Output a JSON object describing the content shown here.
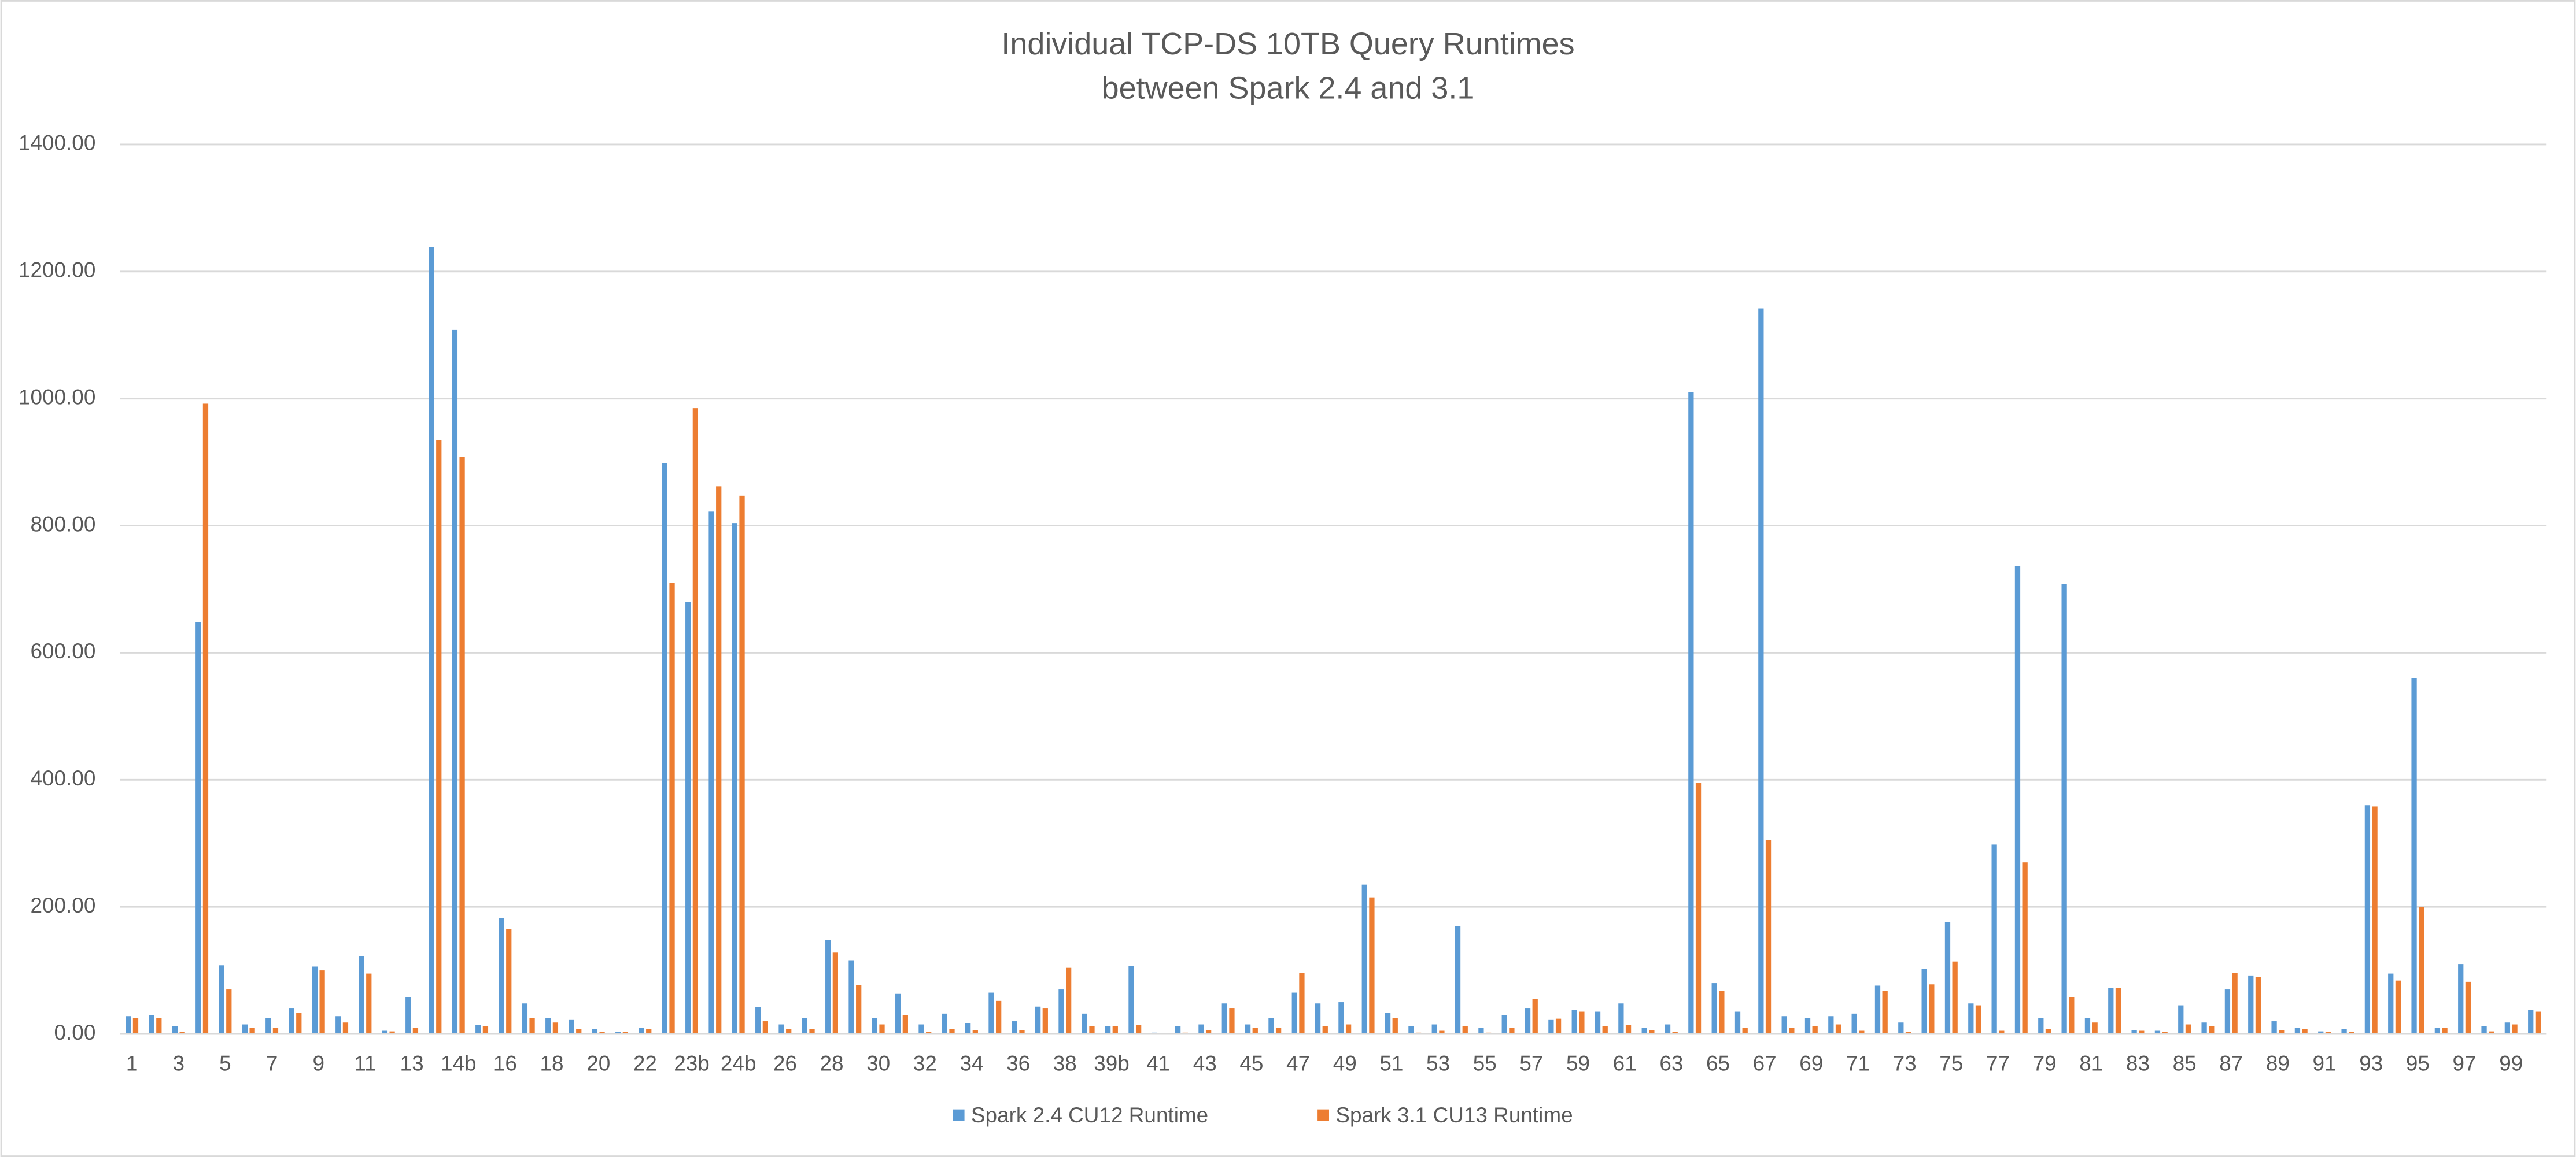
{
  "chart_data": {
    "type": "bar",
    "title": [
      "Individual TCP-DS 10TB Query Runtimes",
      "between Spark 2.4 and 3.1"
    ],
    "categories": [
      "1",
      null,
      "3",
      null,
      "5",
      null,
      "7",
      null,
      "9",
      null,
      "11",
      null,
      "13",
      null,
      "14b",
      null,
      "16",
      null,
      "18",
      null,
      "20",
      null,
      "22",
      null,
      "23b",
      null,
      "24b",
      null,
      "26",
      null,
      "28",
      null,
      "30",
      null,
      "32",
      null,
      "34",
      null,
      "36",
      null,
      "38",
      null,
      "39b",
      null,
      "41",
      null,
      "43",
      null,
      "45",
      null,
      "47",
      null,
      "49",
      null,
      "51",
      null,
      "53",
      null,
      "55",
      null,
      "57",
      null,
      "59",
      null,
      "61",
      null,
      "63",
      null,
      "65",
      null,
      "67",
      null,
      "69",
      null,
      "71",
      null,
      "73",
      null,
      "75",
      null,
      "77",
      null,
      "79",
      null,
      "81",
      null,
      "83",
      null,
      "85",
      null,
      "87",
      null,
      "89",
      null,
      "91",
      null,
      "93",
      null,
      "95",
      null,
      "97",
      null,
      "99",
      null
    ],
    "series": [
      {
        "name": "Spark 2.4 CU12 Runtime",
        "color": "#5b9bd5",
        "values": [
          28,
          30,
          12,
          648,
          108,
          15,
          25,
          40,
          106,
          28,
          122,
          5,
          58,
          1238,
          1108,
          14,
          182,
          48,
          25,
          22,
          8,
          3,
          10,
          898,
          680,
          822,
          804,
          42,
          15,
          25,
          148,
          116,
          25,
          63,
          15,
          32,
          17,
          65,
          20,
          43,
          70,
          32,
          12,
          107,
          2,
          12,
          15,
          48,
          15,
          25,
          65,
          48,
          50,
          235,
          33,
          12,
          15,
          170,
          10,
          30,
          40,
          22,
          38,
          35,
          48,
          10,
          15,
          1010,
          80,
          35,
          1142,
          28,
          25,
          28,
          32,
          76,
          18,
          102,
          176,
          48,
          298,
          736,
          25,
          708,
          25,
          72,
          6,
          5,
          45,
          18,
          70,
          92,
          20,
          10,
          4,
          8,
          360,
          95,
          560,
          10,
          110,
          12,
          18,
          38
        ]
      },
      {
        "name": "Spark 3.1 CU13 Runtime",
        "color": "#ed7d31",
        "values": [
          25,
          25,
          3,
          992,
          70,
          10,
          10,
          33,
          100,
          18,
          95,
          4,
          10,
          935,
          908,
          12,
          165,
          25,
          18,
          8,
          3,
          3,
          8,
          710,
          985,
          862,
          847,
          20,
          8,
          8,
          128,
          77,
          15,
          30,
          3,
          8,
          6,
          52,
          6,
          40,
          104,
          12,
          12,
          14,
          1,
          2,
          6,
          40,
          10,
          10,
          96,
          12,
          15,
          215,
          25,
          2,
          5,
          12,
          2,
          10,
          55,
          24,
          35,
          12,
          14,
          6,
          3,
          395,
          68,
          10,
          305,
          10,
          12,
          15,
          5,
          68,
          3,
          78,
          114,
          45,
          5,
          270,
          8,
          58,
          18,
          72,
          5,
          3,
          15,
          12,
          96,
          90,
          6,
          8,
          3,
          3,
          358,
          84,
          200,
          10,
          82,
          4,
          15,
          35
        ]
      }
    ],
    "ylim": [
      0,
      1400
    ],
    "yticks": [
      {
        "value": 0,
        "label": "0.00"
      },
      {
        "value": 200,
        "label": "200.00"
      },
      {
        "value": 400,
        "label": "400.00"
      },
      {
        "value": 600,
        "label": "600.00"
      },
      {
        "value": 800,
        "label": "800.00"
      },
      {
        "value": 1000,
        "label": "1000.00"
      },
      {
        "value": 1200,
        "label": "1200.00"
      },
      {
        "value": 1400,
        "label": "1400.00"
      }
    ],
    "grid": true,
    "legend": "bottom"
  }
}
